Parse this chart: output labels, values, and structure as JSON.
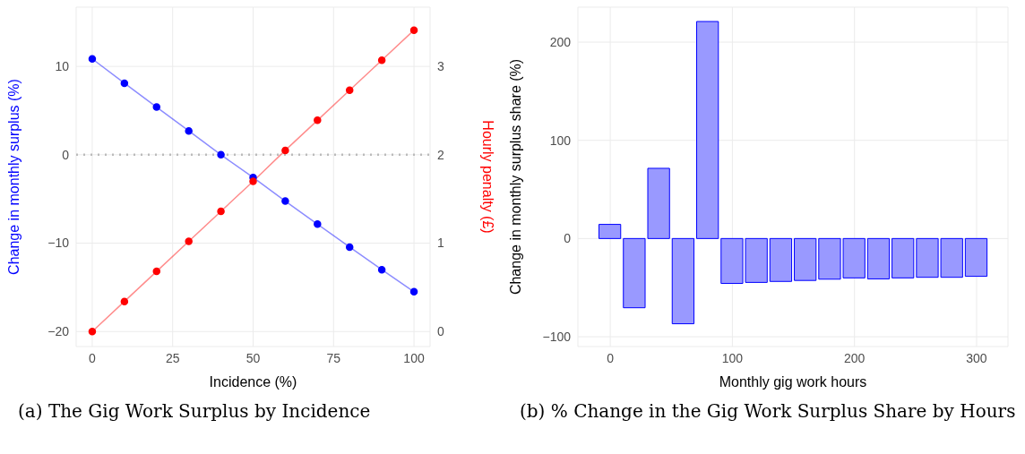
{
  "chart_data": [
    {
      "type": "line",
      "title": "(a) The Gig Work Surplus by Incidence",
      "xlabel": "Incidence (%)",
      "ylabel": "Change in monthly surplus (%)",
      "y2label": "Hourly penalty (£)",
      "x": [
        0,
        10,
        20,
        30,
        40,
        50,
        60,
        70,
        80,
        90,
        100
      ],
      "series": [
        {
          "color": "#0000ff",
          "values": [
            10.85,
            8.1,
            5.4,
            2.7,
            0,
            -2.57,
            -5.24,
            -7.85,
            -10.45,
            -13.0,
            -15.5
          ]
        },
        {
          "color": "#ff0000",
          "axis": "y2",
          "values": [
            0,
            0.34,
            0.68,
            1.02,
            1.36,
            1.7,
            2.05,
            2.39,
            2.73,
            3.07,
            3.41
          ]
        }
      ],
      "xlim": [
        -5,
        105
      ],
      "xticks": [
        0,
        25,
        50,
        75,
        100
      ],
      "ylim": [
        -21.7,
        16.7
      ],
      "yticks": [
        -20,
        -10,
        0,
        10
      ],
      "y2lim": [
        -0.17,
        3.67
      ],
      "y2ticks": [
        0,
        1,
        2,
        3
      ],
      "grid": true,
      "marker": "circle",
      "ref_lines": [
        {
          "axis": "y",
          "value": 0,
          "color": "#bbbbbb",
          "line_style": "dotted"
        }
      ]
    },
    {
      "type": "bar",
      "title": "(b) % Change in the Gig Work Surplus Share by Hours",
      "xlabel": "Monthly gig work hours",
      "ylabel": "Change in monthly surplus share (%)",
      "x": [
        0,
        20,
        40,
        60,
        80,
        100,
        120,
        140,
        160,
        180,
        200,
        220,
        240,
        260,
        280,
        300
      ],
      "series": [
        {
          "color": "#9999ff",
          "values": [
            14.4,
            -70.5,
            71.5,
            -86.8,
            221,
            -45.7,
            -44.7,
            -43.7,
            -42.7,
            -41.4,
            -40.1,
            -41.1,
            -40.1,
            -39.5,
            -39.5,
            -38.5
          ]
        }
      ],
      "xlim": [
        -26.5,
        325.7
      ],
      "xticks": [
        0,
        100,
        200,
        300
      ],
      "ylim": [
        -110,
        235.6
      ],
      "yticks": [
        -100,
        0,
        100,
        200
      ],
      "grid": true
    }
  ]
}
